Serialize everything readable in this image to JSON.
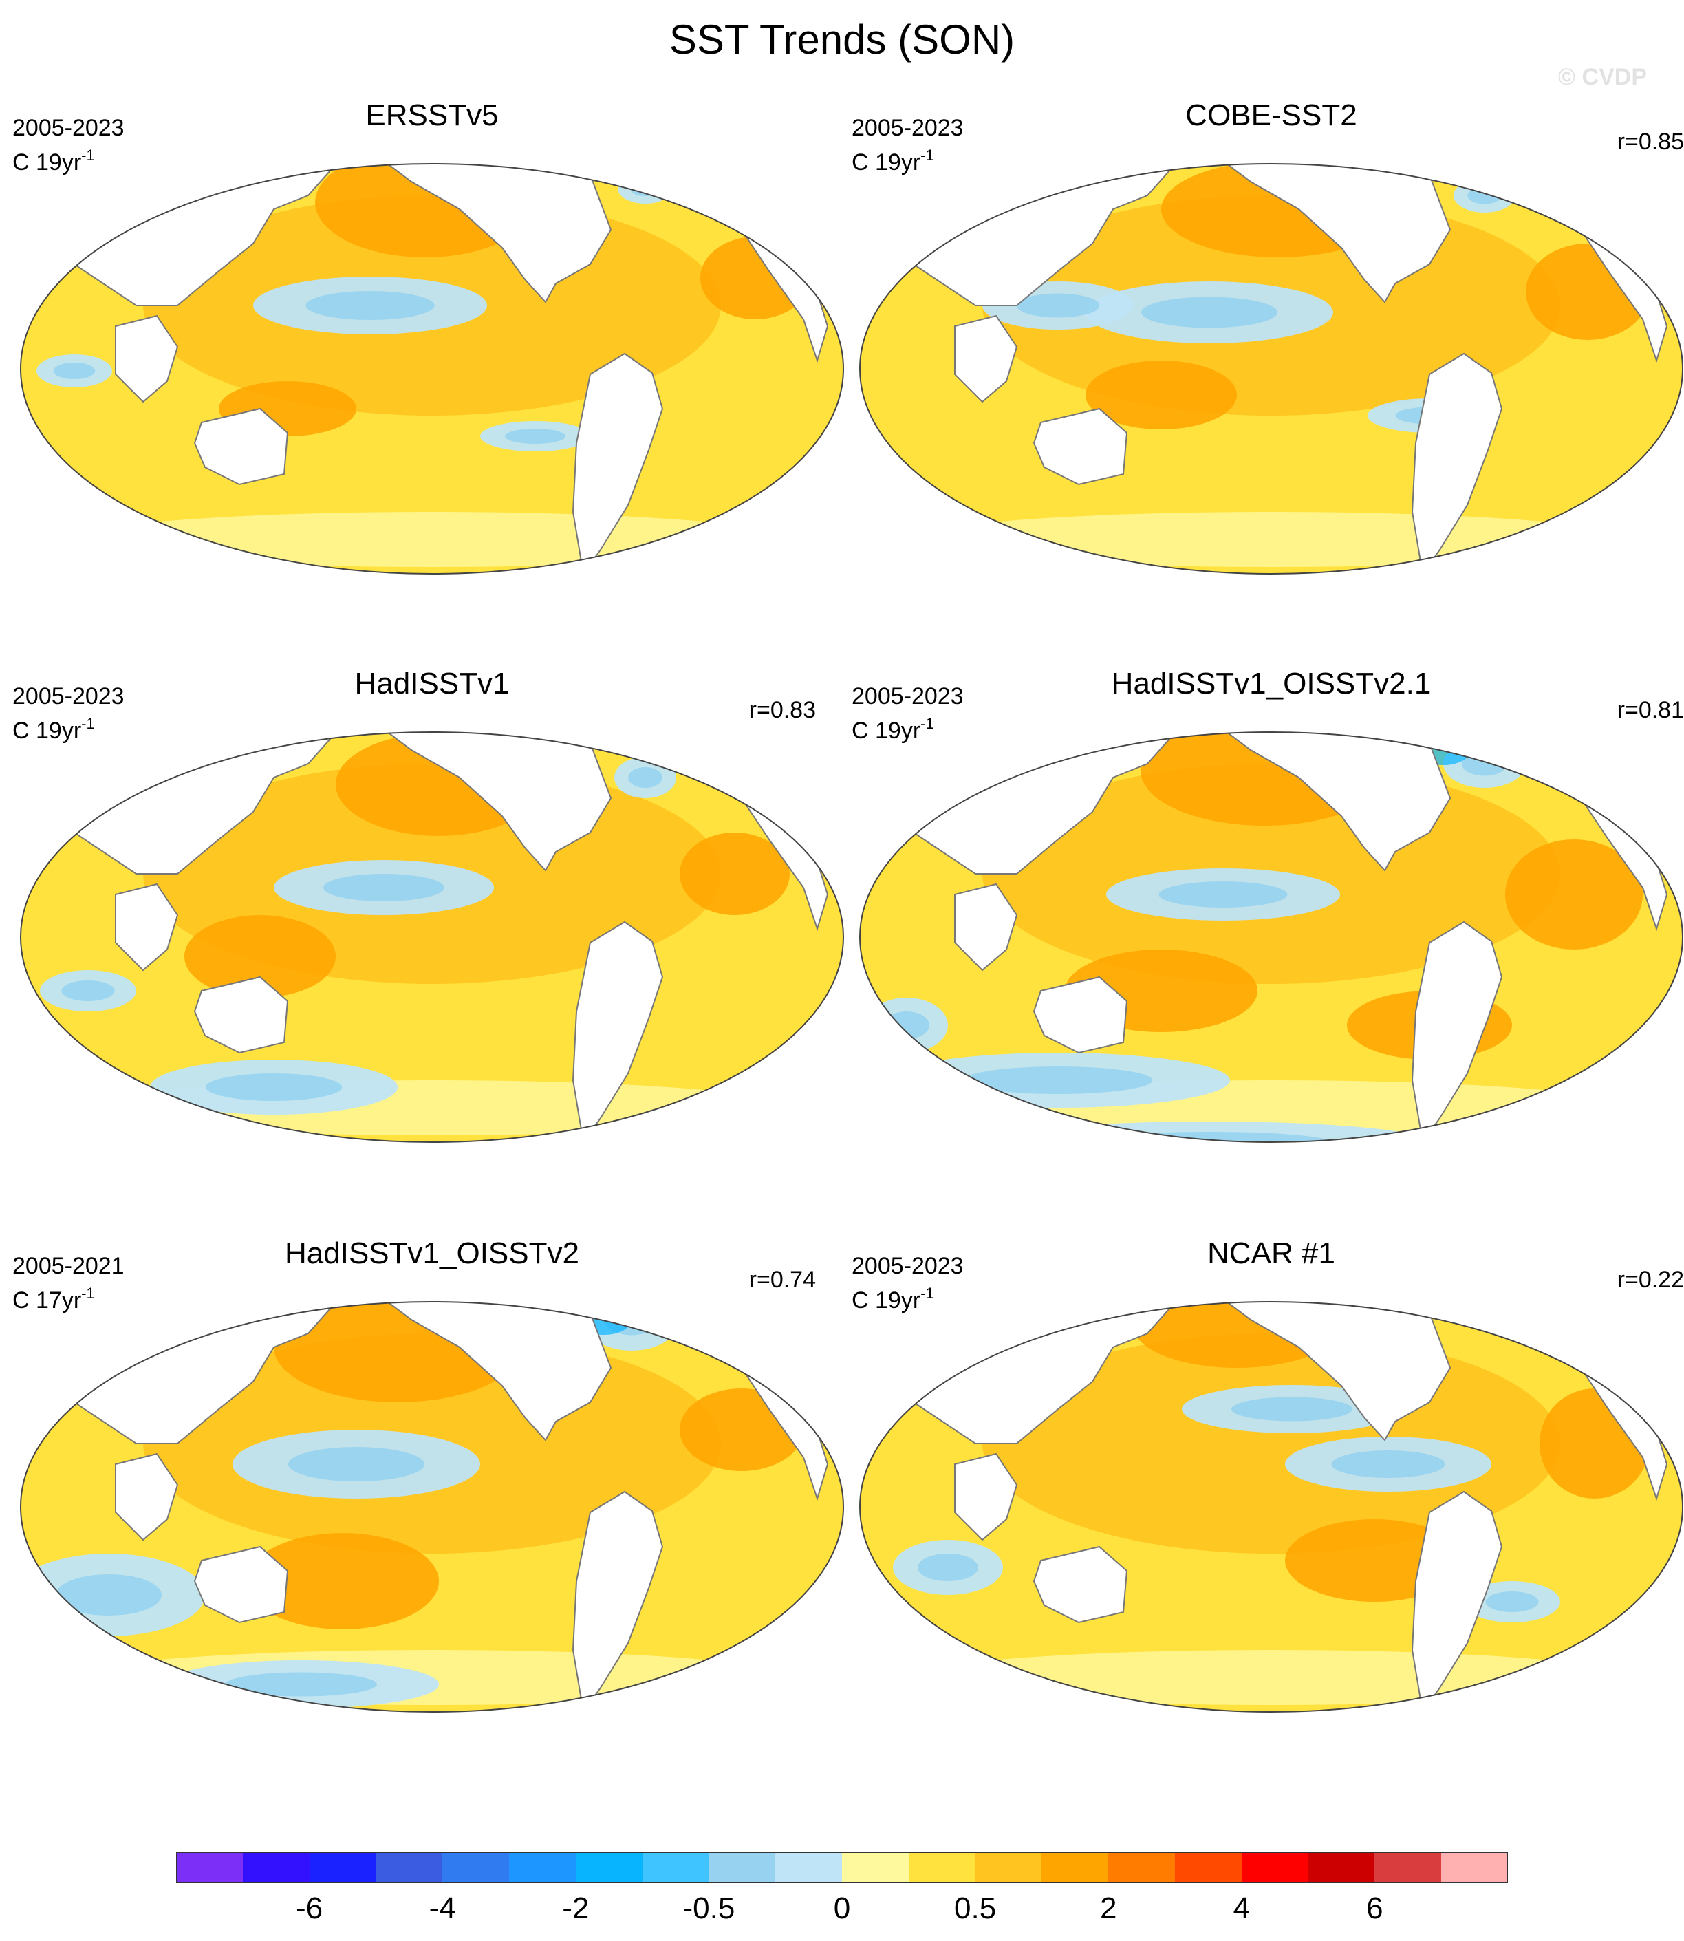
{
  "title": "SST Trends (SON)",
  "watermark": "© CVDP",
  "panels": [
    {
      "name": "ERSSTv5",
      "period": "2005-2023",
      "units_prefix": "C 19yr",
      "units_exp": "-1",
      "r": ""
    },
    {
      "name": "COBE-SST2",
      "period": "2005-2023",
      "units_prefix": "C 19yr",
      "units_exp": "-1",
      "r": "r=0.85"
    },
    {
      "name": "HadISSTv1",
      "period": "2005-2023",
      "units_prefix": "C 19yr",
      "units_exp": "-1",
      "r": "r=0.83"
    },
    {
      "name": "HadISSTv1_OISSTv2.1",
      "period": "2005-2023",
      "units_prefix": "C 19yr",
      "units_exp": "-1",
      "r": "r=0.81"
    },
    {
      "name": "HadISSTv1_OISSTv2",
      "period": "2005-2021",
      "units_prefix": "C 17yr",
      "units_exp": "-1",
      "r": "r=0.74"
    },
    {
      "name": "NCAR #1",
      "period": "2005-2023",
      "units_prefix": "C 19yr",
      "units_exp": "-1",
      "r": "r=0.22"
    }
  ],
  "colorbar": {
    "colors": [
      "#7b2ff7",
      "#3311ff",
      "#1a22ff",
      "#3b5be0",
      "#2f7bef",
      "#1e96ff",
      "#09b4ff",
      "#3fc4ff",
      "#97d3f0",
      "#bfe4f7",
      "#fff99e",
      "#ffe23d",
      "#ffc41f",
      "#ffa500",
      "#ff7c00",
      "#ff4a00",
      "#ff0000",
      "#cc0000",
      "#d93d3d",
      "#ffb0b0"
    ],
    "labels": [
      "-6",
      "-4",
      "-2",
      "-0.5",
      "0",
      "0.5",
      "2",
      "4",
      "6"
    ]
  }
}
